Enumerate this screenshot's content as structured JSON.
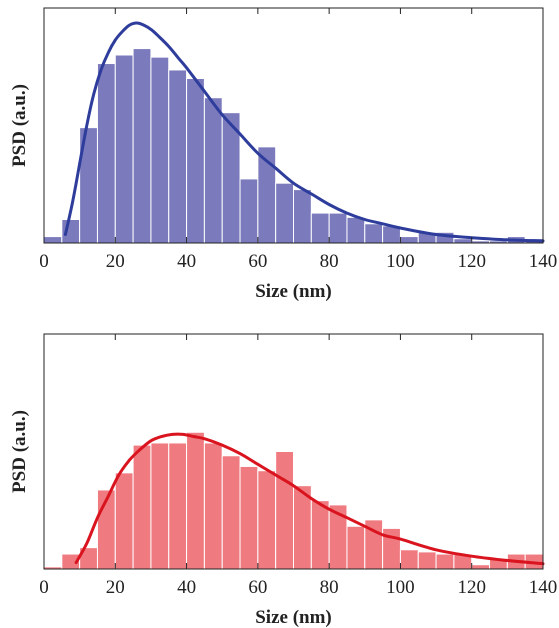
{
  "chart_data": [
    {
      "type": "bar",
      "panel": "top",
      "xlabel": "Size (nm)",
      "ylabel": "PSD (a.u.)",
      "xlim": [
        0,
        140
      ],
      "ylim": [
        0,
        1.1
      ],
      "xticks": [
        0,
        20,
        40,
        60,
        80,
        100,
        120,
        140
      ],
      "bin_width": 5,
      "bin_starts": [
        0,
        5,
        10,
        15,
        20,
        25,
        30,
        35,
        40,
        45,
        50,
        55,
        60,
        65,
        70,
        75,
        80,
        85,
        90,
        95,
        100,
        105,
        110,
        115,
        120,
        125,
        130,
        135
      ],
      "values": [
        0.03,
        0.11,
        0.54,
        0.84,
        0.88,
        0.91,
        0.87,
        0.81,
        0.77,
        0.68,
        0.61,
        0.3,
        0.45,
        0.28,
        0.25,
        0.14,
        0.14,
        0.12,
        0.09,
        0.08,
        0.03,
        0.05,
        0.05,
        0.02,
        0.01,
        0.01,
        0.03,
        0.02
      ],
      "bar_color": "#7a7abd",
      "fit": {
        "color": "#2e3d9c",
        "x": [
          6,
          8,
          10,
          12,
          14,
          16,
          18,
          20,
          22,
          24,
          26,
          28,
          30,
          32,
          35,
          38,
          40,
          45,
          50,
          55,
          60,
          65,
          70,
          75,
          80,
          85,
          90,
          95,
          100,
          110,
          120,
          130,
          140
        ],
        "y": [
          0.04,
          0.19,
          0.37,
          0.55,
          0.7,
          0.81,
          0.89,
          0.95,
          0.99,
          1.02,
          1.03,
          1.02,
          1.0,
          0.97,
          0.92,
          0.86,
          0.82,
          0.71,
          0.6,
          0.51,
          0.42,
          0.35,
          0.28,
          0.23,
          0.18,
          0.14,
          0.11,
          0.09,
          0.07,
          0.04,
          0.025,
          0.015,
          0.01
        ]
      }
    },
    {
      "type": "bar",
      "panel": "bottom",
      "xlabel": "Size (nm)",
      "ylabel": "PSD (a.u.)",
      "xlim": [
        0,
        140
      ],
      "ylim": [
        0,
        1.1
      ],
      "xticks": [
        0,
        20,
        40,
        60,
        80,
        100,
        120,
        140
      ],
      "bin_width": 5,
      "bin_starts": [
        0,
        5,
        10,
        15,
        20,
        25,
        30,
        35,
        40,
        45,
        50,
        55,
        60,
        65,
        70,
        75,
        80,
        85,
        90,
        95,
        100,
        105,
        110,
        115,
        120,
        125,
        130,
        135
      ],
      "values": [
        0.01,
        0.07,
        0.1,
        0.37,
        0.45,
        0.58,
        0.59,
        0.59,
        0.64,
        0.59,
        0.53,
        0.48,
        0.46,
        0.55,
        0.39,
        0.32,
        0.3,
        0.2,
        0.23,
        0.19,
        0.09,
        0.08,
        0.07,
        0.07,
        0.02,
        0.05,
        0.07,
        0.07
      ],
      "bar_color": "#ef7a80",
      "fit": {
        "color": "#d9141e",
        "x": [
          9,
          12,
          15,
          18,
          21,
          24,
          27,
          30,
          33,
          36,
          39,
          42,
          45,
          50,
          55,
          60,
          65,
          70,
          75,
          80,
          85,
          90,
          95,
          100,
          110,
          120,
          130,
          140
        ],
        "y": [
          0.03,
          0.12,
          0.24,
          0.34,
          0.44,
          0.51,
          0.56,
          0.6,
          0.62,
          0.63,
          0.63,
          0.62,
          0.61,
          0.58,
          0.54,
          0.49,
          0.44,
          0.39,
          0.33,
          0.28,
          0.24,
          0.2,
          0.16,
          0.14,
          0.09,
          0.06,
          0.04,
          0.025
        ]
      }
    }
  ]
}
